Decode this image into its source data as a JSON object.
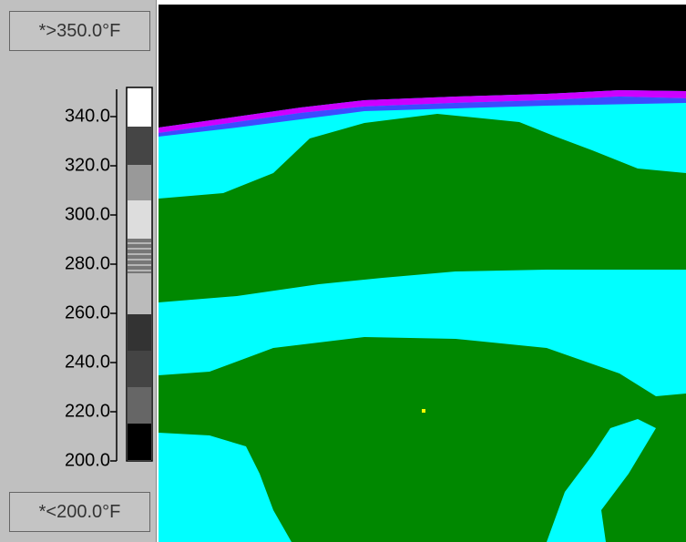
{
  "scale": {
    "max_label": "*>350.0°F",
    "min_label": "*<200.0°F",
    "ticks": [
      "340.0",
      "320.0",
      "300.0",
      "280.0",
      "260.0",
      "240.0",
      "220.0",
      "200.0"
    ]
  }
}
